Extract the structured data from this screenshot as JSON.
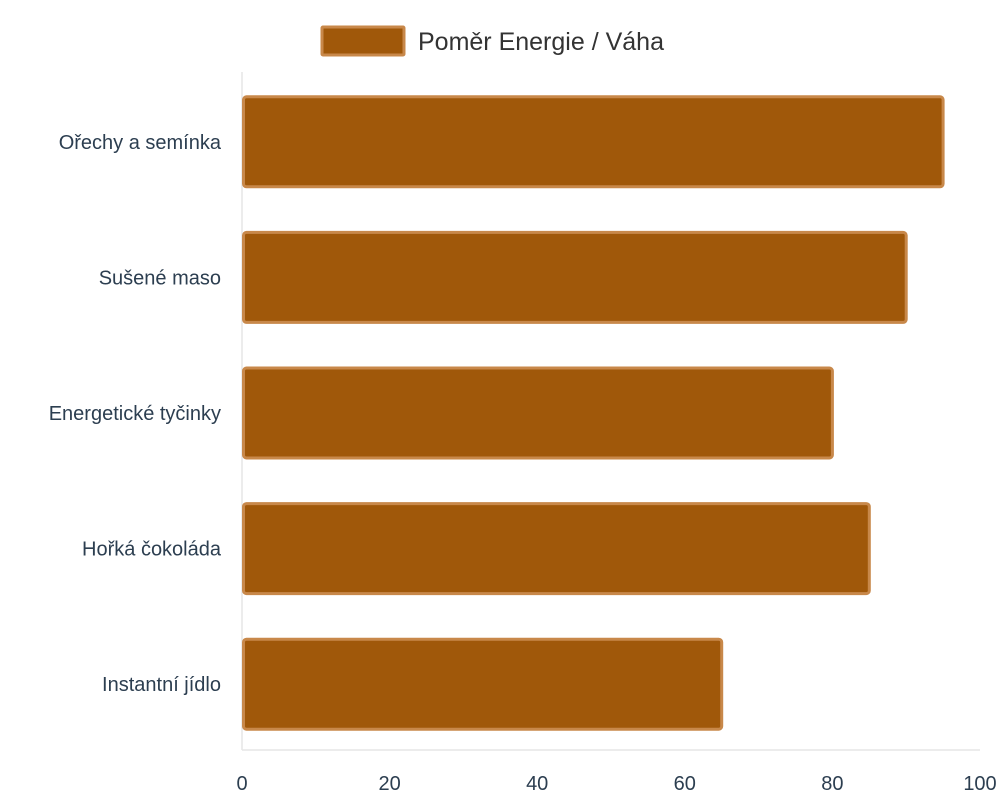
{
  "chart_data": {
    "type": "bar",
    "orientation": "horizontal",
    "categories": [
      "Ořechy a semínka",
      "Sušené maso",
      "Energetické tyčinky",
      "Hořká čokoláda",
      "Instantní jídlo"
    ],
    "series": [
      {
        "name": "Poměr Energie / Váha",
        "values": [
          95,
          90,
          80,
          85,
          65
        ],
        "color": "#a0580a",
        "border_color": "#c8884a"
      }
    ],
    "xlim": [
      0,
      100
    ],
    "x_ticks": [
      "0",
      "20",
      "40",
      "60",
      "80",
      "100"
    ],
    "grid": false,
    "legend_position": "top"
  }
}
